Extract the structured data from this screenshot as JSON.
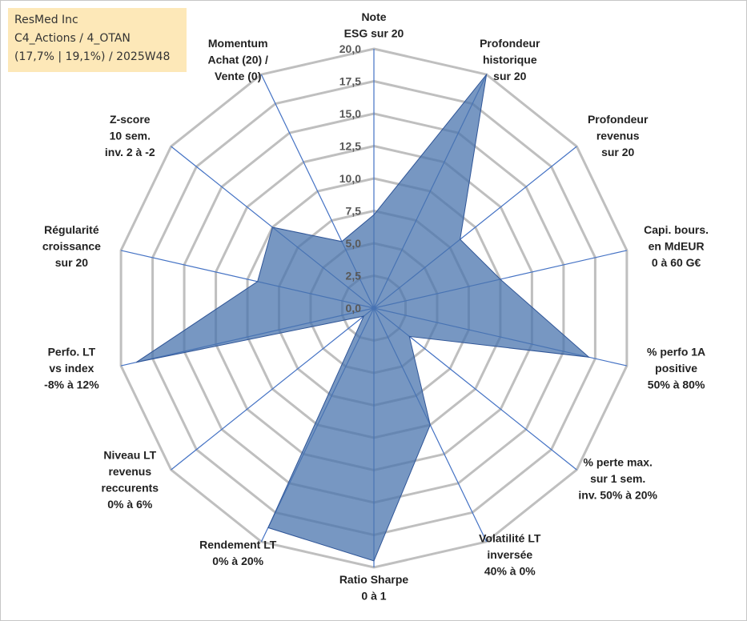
{
  "info_box": {
    "line1": "ResMed Inc",
    "line2": "C4_Actions / 4_OTAN",
    "line3": "(17,7% | 19,1%) / 2025W48"
  },
  "colors": {
    "grid": "#bfbfbf",
    "spoke": "#4472c4",
    "fill": "#4a74ad",
    "stroke": "#2f5597",
    "info_box_bg": "#fde8b8"
  },
  "chart_data": {
    "type": "radar",
    "title": "",
    "rlim": [
      0,
      20
    ],
    "r_ticks": [
      "0,0",
      "2,5",
      "5,0",
      "7,5",
      "10,0",
      "12,5",
      "15,0",
      "17,5",
      "20,0"
    ],
    "axes": [
      {
        "label": [
          "Note",
          "ESG sur 20"
        ]
      },
      {
        "label": [
          "Profondeur",
          "historique",
          "sur 20"
        ]
      },
      {
        "label": [
          "Profondeur",
          "revenus",
          "sur 20"
        ]
      },
      {
        "label": [
          "Capi. bours.",
          "en MdEUR",
          "0 à 60 G€"
        ]
      },
      {
        "label": [
          "% perfo 1A",
          "positive",
          "50% à 80%"
        ]
      },
      {
        "label": [
          "% perte max.",
          "sur 1 sem.",
          "inv. 50% à 20%"
        ]
      },
      {
        "label": [
          "Volatilité LT",
          "inversée",
          "40% à 0%"
        ]
      },
      {
        "label": [
          "Ratio Sharpe",
          "0 à 1"
        ]
      },
      {
        "label": [
          "Rendement LT",
          "0% à 20%"
        ]
      },
      {
        "label": [
          "Niveau LT",
          "revenus",
          "reccurents",
          "0% à 6%"
        ]
      },
      {
        "label": [
          "Perfo. LT",
          "vs index",
          "-8% à 12%"
        ]
      },
      {
        "label": [
          "Régularité",
          "croissance",
          "sur 20"
        ]
      },
      {
        "label": [
          "Z-score",
          "10 sem.",
          "inv. 2 à -2"
        ]
      },
      {
        "label": [
          "Momentum",
          "Achat (20) /",
          "Vente (0)"
        ]
      }
    ],
    "series": [
      {
        "name": "ResMed Inc",
        "values": [
          7.2,
          20.0,
          8.5,
          10.0,
          17.0,
          3.5,
          10.0,
          19.5,
          18.8,
          1.0,
          18.8,
          9.2,
          10.0,
          5.7
        ]
      }
    ]
  }
}
